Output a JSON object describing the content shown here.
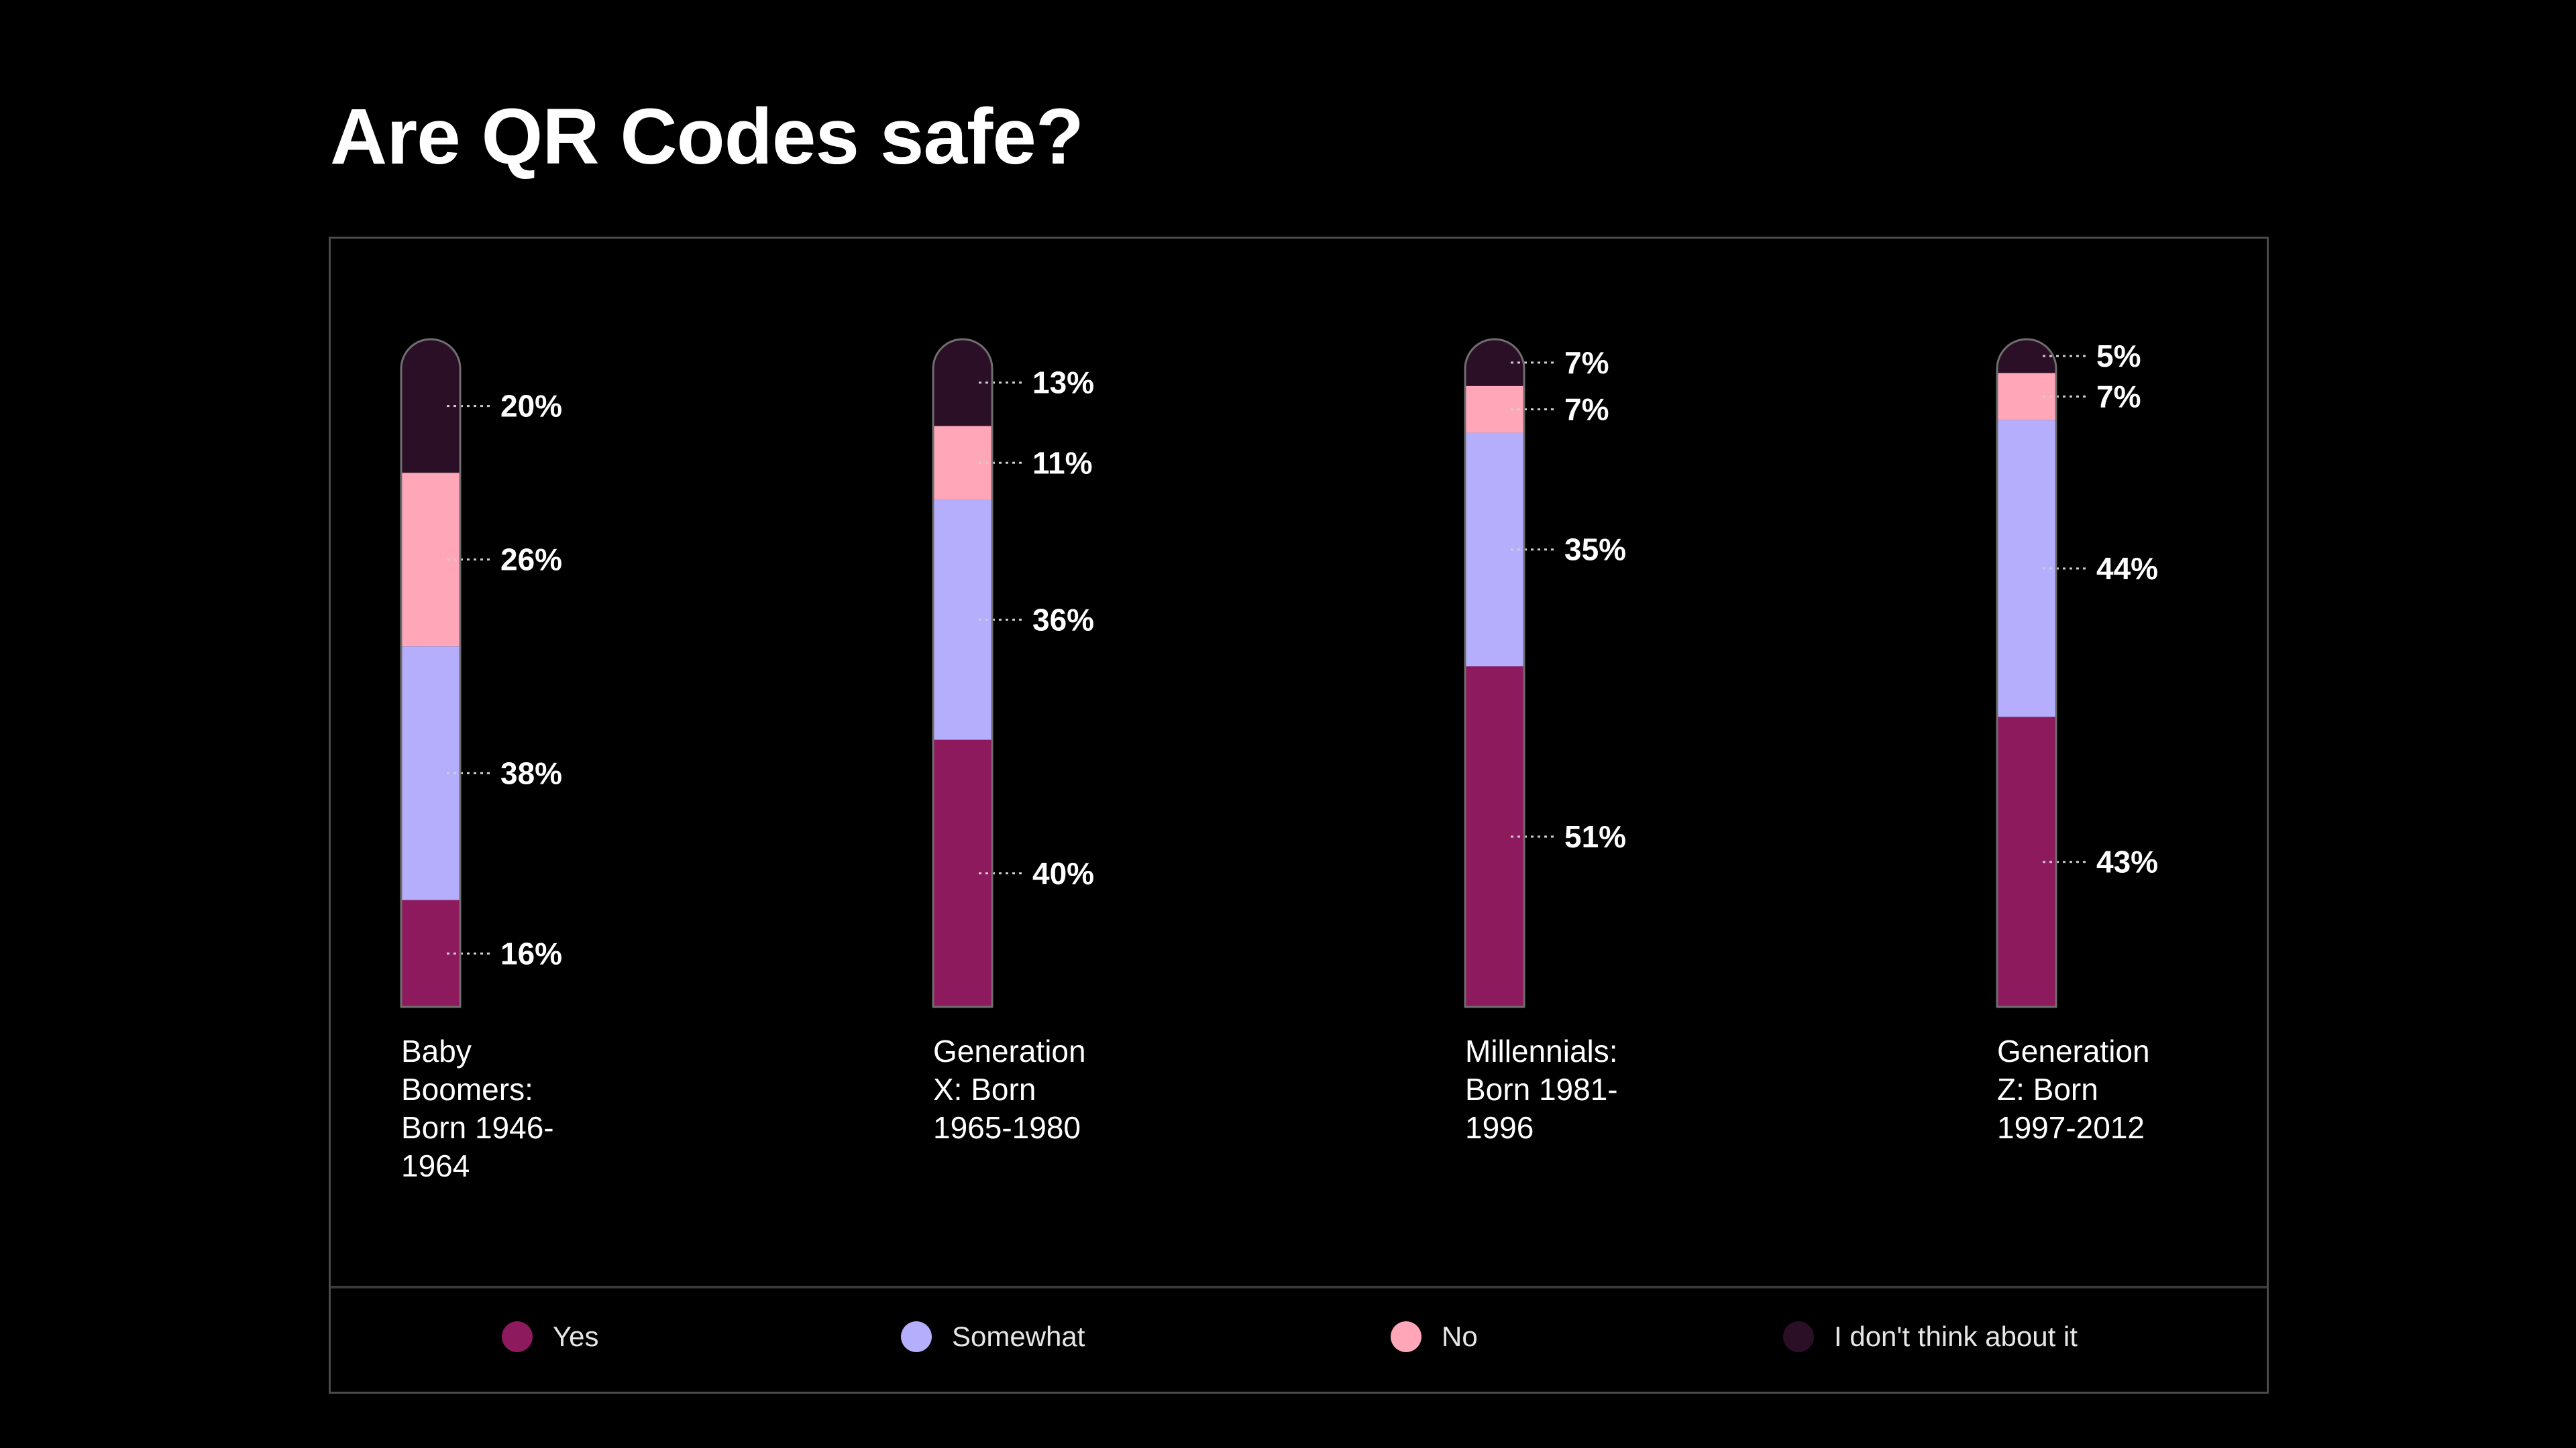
{
  "title": "Are QR Codes safe?",
  "chart_data": {
    "type": "bar",
    "stacked": true,
    "title": "Are QR Codes safe?",
    "categories": [
      "Baby Boomers: Born 1946-1964",
      "Generation X: Born 1965-1980",
      "Millennials: Born 1981-1996",
      "Generation Z: Born 1997-2012"
    ],
    "category_lines": [
      [
        "Baby",
        "Boomers:",
        "Born 1946-",
        "1964"
      ],
      [
        "Generation",
        "X: Born",
        "1965-1980"
      ],
      [
        "Millennials:",
        "Born 1981-",
        "1996"
      ],
      [
        "Generation",
        "Z: Born",
        "1997-2012"
      ]
    ],
    "series": [
      {
        "name": "Yes",
        "color": "#8e1a5e",
        "values": [
          16,
          40,
          51,
          43
        ]
      },
      {
        "name": "Somewhat",
        "color": "#b4aefc",
        "values": [
          38,
          36,
          35,
          44
        ]
      },
      {
        "name": "No",
        "color": "#ffa6b8",
        "values": [
          26,
          11,
          7,
          7
        ]
      },
      {
        "name": "I don't think about it",
        "color": "#2b0f26",
        "values": [
          20,
          13,
          7,
          5
        ]
      }
    ],
    "value_suffix": "%",
    "legend_position": "bottom",
    "ylim": [
      0,
      100
    ]
  }
}
